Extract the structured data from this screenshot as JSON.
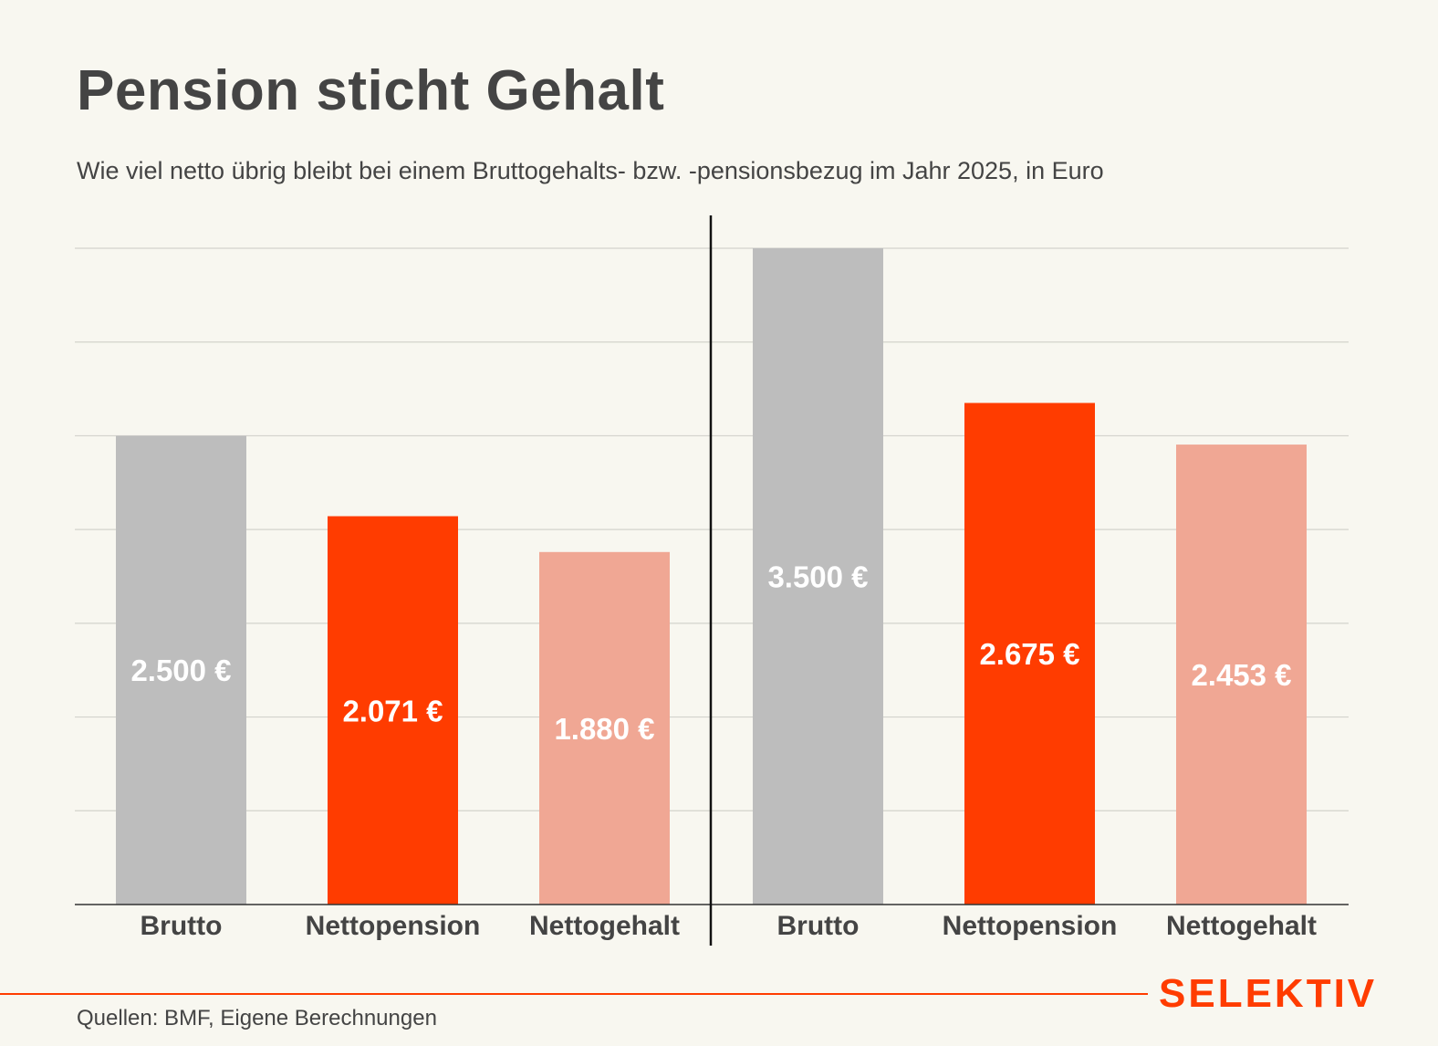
{
  "title": "Pension sticht Gehalt",
  "subtitle": "Wie viel netto übrig bleibt bei einem Bruttogehalts- bzw. -pensionsbezug im Jahr 2025, in Euro",
  "source": "Quellen: BMF, Eigene Berechnungen",
  "brand": "SELEKTIV",
  "colors": {
    "background": "#f8f7f0",
    "brutto": "#bdbdbd",
    "nettopension": "#ff3c00",
    "nettogehalt": "#f0a794",
    "text": "#444444",
    "grid": "#d3d3cc",
    "brand": "#ff3c00"
  },
  "chart_data": {
    "type": "bar",
    "ylim": [
      0,
      3500
    ],
    "grid": true,
    "groups": [
      {
        "bars": [
          {
            "category": "Brutto",
            "value": 2500,
            "label": "2.500 €",
            "color": "#bdbdbd"
          },
          {
            "category": "Nettopension",
            "value": 2071,
            "label": "2.071 €",
            "color": "#ff3c00"
          },
          {
            "category": "Nettogehalt",
            "value": 1880,
            "label": "1.880 €",
            "color": "#f0a794"
          }
        ]
      },
      {
        "bars": [
          {
            "category": "Brutto",
            "value": 3500,
            "label": "3.500 €",
            "color": "#bdbdbd"
          },
          {
            "category": "Nettopension",
            "value": 2675,
            "label": "2.675 €",
            "color": "#ff3c00"
          },
          {
            "category": "Nettogehalt",
            "value": 2453,
            "label": "2.453 €",
            "color": "#f0a794"
          }
        ]
      }
    ]
  }
}
